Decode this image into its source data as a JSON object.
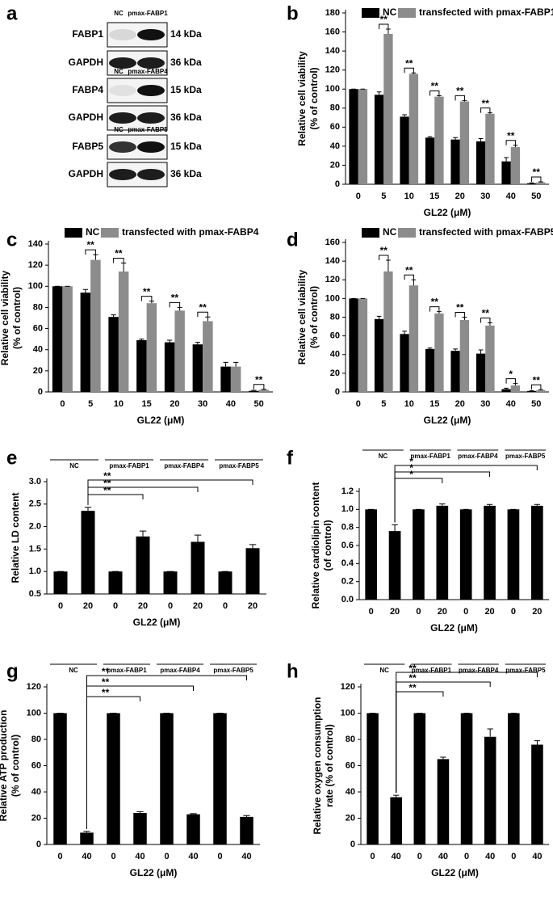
{
  "blot": {
    "panel": "a",
    "sections": [
      {
        "lanes": [
          "NC",
          "pmax-FABP1"
        ],
        "rows": [
          {
            "protein": "FABP1",
            "size": "14 kDa"
          },
          {
            "protein": "GAPDH",
            "size": "36 kDa"
          }
        ]
      },
      {
        "lanes": [
          "NC",
          "pmax-FABP4"
        ],
        "rows": [
          {
            "protein": "FABP4",
            "size": "15 kDa"
          },
          {
            "protein": "GAPDH",
            "size": "36 kDa"
          }
        ]
      },
      {
        "lanes": [
          "NC",
          "pmax-FABP5"
        ],
        "rows": [
          {
            "protein": "FABP5",
            "size": "15 kDa"
          },
          {
            "protein": "GAPDH",
            "size": "36 kDa"
          }
        ]
      }
    ]
  },
  "chart_data": [
    {
      "panel": "b",
      "type": "bar",
      "categories": [
        "0",
        "5",
        "10",
        "15",
        "20",
        "30",
        "40",
        "50"
      ],
      "series": [
        {
          "name": "NC",
          "color": "#000000",
          "values": [
            100,
            94,
            71,
            49,
            47,
            45,
            24,
            1
          ],
          "errors": [
            0,
            3,
            2,
            1,
            2,
            3,
            4,
            0.5
          ]
        },
        {
          "name": "transfected with pmax-FABP1",
          "color": "#8c8c8c",
          "values": [
            100,
            158,
            116,
            92,
            87,
            74,
            39,
            2
          ],
          "errors": [
            0,
            5,
            1,
            1,
            1,
            1,
            2,
            0.5
          ]
        }
      ],
      "significance": [
        null,
        "**",
        "**",
        "**",
        "**",
        "**",
        "**",
        "**"
      ],
      "ylim": [
        0,
        180
      ],
      "yticks": [
        0,
        20,
        40,
        60,
        80,
        100,
        120,
        140,
        160,
        180
      ],
      "xlabel": "GL22 (μM)",
      "ylabel": [
        "Relative cell viability",
        "(% of control)"
      ],
      "legend": "top"
    },
    {
      "panel": "c",
      "type": "bar",
      "categories": [
        "0",
        "5",
        "10",
        "15",
        "20",
        "30",
        "40",
        "50"
      ],
      "series": [
        {
          "name": "NC",
          "color": "#000000",
          "values": [
            100,
            94,
            71,
            49,
            47,
            45,
            24,
            1
          ],
          "errors": [
            0,
            3,
            2,
            1,
            2,
            2,
            4,
            0.5
          ]
        },
        {
          "name": "transfected with pmax-FABP4",
          "color": "#8c8c8c",
          "values": [
            100,
            125,
            114,
            84,
            77,
            67,
            24,
            2
          ],
          "errors": [
            0,
            5,
            8,
            2,
            3,
            4,
            4,
            0.5
          ]
        }
      ],
      "significance": [
        null,
        "**",
        "**",
        "**",
        "**",
        "**",
        null,
        "**"
      ],
      "ylim": [
        0,
        140
      ],
      "yticks": [
        0,
        20,
        40,
        60,
        80,
        100,
        120,
        140
      ],
      "xlabel": "GL22 (μM)",
      "ylabel": [
        "Relative cell viability",
        "(% of control)"
      ],
      "legend": "top"
    },
    {
      "panel": "d",
      "type": "bar",
      "categories": [
        "0",
        "5",
        "10",
        "15",
        "20",
        "30",
        "40",
        "50"
      ],
      "series": [
        {
          "name": "NC",
          "color": "#000000",
          "values": [
            100,
            78,
            62,
            46,
            44,
            41,
            3,
            1
          ],
          "errors": [
            0,
            3,
            3,
            1,
            2,
            4,
            1,
            0.3
          ]
        },
        {
          "name": "transfected with pmax-FABP5",
          "color": "#8c8c8c",
          "values": [
            100,
            129,
            114,
            84,
            77,
            71,
            7,
            2
          ],
          "errors": [
            0,
            12,
            6,
            2,
            3,
            3,
            2,
            0.5
          ]
        }
      ],
      "significance": [
        null,
        "**",
        "**",
        "**",
        "**",
        "**",
        "*",
        "**"
      ],
      "ylim": [
        0,
        160
      ],
      "yticks": [
        0,
        20,
        40,
        60,
        80,
        100,
        120,
        140,
        160
      ],
      "xlabel": "GL22 (μM)",
      "ylabel": [
        "Relative cell viability",
        "(% of control)"
      ],
      "legend": "top"
    },
    {
      "panel": "e",
      "type": "bar",
      "groups": [
        "NC",
        "pmax-FABP1",
        "pmax-FABP4",
        "pmax-FABP5"
      ],
      "categories": [
        "0",
        "20",
        "0",
        "20",
        "0",
        "20",
        "0",
        "20"
      ],
      "values": [
        1,
        2.35,
        1,
        1.78,
        1,
        1.66,
        1,
        1.52
      ],
      "errors": [
        0,
        0.08,
        0,
        0.12,
        0,
        0.15,
        0,
        0.08
      ],
      "color": "#000000",
      "comparisons": [
        {
          "from": 1,
          "to": 3,
          "label": "**"
        },
        {
          "from": 1,
          "to": 5,
          "label": "**"
        },
        {
          "from": 1,
          "to": 7,
          "label": "**"
        }
      ],
      "ylim": [
        0.5,
        3.0
      ],
      "yticks": [
        0.5,
        {
          "value": 1,
          "label": "1.0"
        },
        1.5,
        {
          "value": 2,
          "label": "2.0"
        },
        2.5,
        {
          "value": 3,
          "label": "3.0"
        }
      ],
      "xlabel": "GL22 (μM)",
      "ylabel": [
        "Relative LD content"
      ]
    },
    {
      "panel": "f",
      "type": "bar",
      "groups": [
        "NC",
        "pmax-FABP1",
        "pmax-FABP4",
        "pmax-FABP5"
      ],
      "categories": [
        "0",
        "20",
        "0",
        "20",
        "0",
        "20",
        "0",
        "20"
      ],
      "values": [
        1,
        0.76,
        1,
        1.04,
        1,
        1.04,
        1,
        1.04
      ],
      "errors": [
        0,
        0.07,
        0,
        0.02,
        0,
        0.015,
        0,
        0.015
      ],
      "color": "#000000",
      "comparisons": [
        {
          "from": 1,
          "to": 3,
          "label": "*"
        },
        {
          "from": 1,
          "to": 5,
          "label": "*"
        },
        {
          "from": 1,
          "to": 7,
          "label": "*"
        }
      ],
      "ylim": [
        0,
        1.2
      ],
      "yticks": [
        {
          "value": 0,
          "label": "0.0"
        },
        0.2,
        0.4,
        0.6,
        0.8,
        {
          "value": 1,
          "label": "1.0"
        },
        1.2
      ],
      "xlabel": "GL22 (μM)",
      "ylabel": [
        "Relative cardiolipin content",
        "(of control)"
      ]
    },
    {
      "panel": "g",
      "type": "bar",
      "groups": [
        "NC",
        "pmax-FABP1",
        "pmax-FABP4",
        "pmax-FABP5"
      ],
      "categories": [
        "0",
        "40",
        "0",
        "40",
        "0",
        "40",
        "0",
        "40"
      ],
      "values": [
        100,
        9,
        100,
        24,
        100,
        23,
        100,
        21
      ],
      "errors": [
        0,
        1,
        0,
        1,
        0,
        0.5,
        0,
        1
      ],
      "color": "#000000",
      "comparisons": [
        {
          "from": 1,
          "to": 3,
          "label": "**"
        },
        {
          "from": 1,
          "to": 5,
          "label": "**"
        },
        {
          "from": 1,
          "to": 7,
          "label": "**"
        }
      ],
      "ylim": [
        0,
        120
      ],
      "yticks": [
        0,
        20,
        40,
        60,
        80,
        100,
        120
      ],
      "xlabel": "GL22 (μM)",
      "ylabel": [
        "Relative ATP production",
        "(% of control)"
      ]
    },
    {
      "panel": "h",
      "type": "bar",
      "groups": [
        "NC",
        "pmax-FABP1",
        "pmax-FABP4",
        "pmax-FABP5"
      ],
      "categories": [
        "0",
        "40",
        "0",
        "40",
        "0",
        "40",
        "0",
        "40"
      ],
      "values": [
        100,
        36,
        100,
        65,
        100,
        82,
        100,
        76
      ],
      "errors": [
        0,
        1.5,
        0,
        1.5,
        0,
        6,
        0,
        3
      ],
      "color": "#000000",
      "comparisons": [
        {
          "from": 1,
          "to": 3,
          "label": "**"
        },
        {
          "from": 1,
          "to": 5,
          "label": "**"
        },
        {
          "from": 1,
          "to": 7,
          "label": "**"
        }
      ],
      "ylim": [
        0,
        120
      ],
      "yticks": [
        0,
        20,
        40,
        60,
        80,
        100,
        120
      ],
      "xlabel": "GL22 (μM)",
      "ylabel": [
        "Relative oxygen consumption",
        "rate (% of control)"
      ]
    }
  ]
}
